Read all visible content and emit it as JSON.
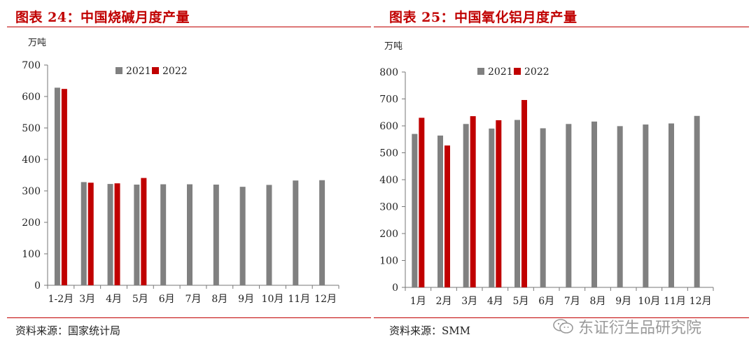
{
  "colors": {
    "y2021": "#808080",
    "y2022": "#c00000",
    "title": "#c00000"
  },
  "watermark": {
    "text": "东证衍生品研究院",
    "icon": "wechat-icon"
  },
  "left": {
    "title": "图表 24：中国烧碱月度产量",
    "source": "资料来源：国家统计局",
    "chart_data": {
      "type": "bar",
      "ylabel": "万吨",
      "ylim": [
        0,
        700
      ],
      "yticks": [
        0,
        100,
        200,
        300,
        400,
        500,
        600,
        700
      ],
      "grid": false,
      "legend": "top-center",
      "categories": [
        "1-2月",
        "3月",
        "4月",
        "5月",
        "6月",
        "7月",
        "8月",
        "9月",
        "10月",
        "11月",
        "12月"
      ],
      "series": [
        {
          "name": "2021",
          "values": [
            628,
            328,
            322,
            320,
            321,
            321,
            320,
            313,
            319,
            333,
            334
          ]
        },
        {
          "name": "2022",
          "values": [
            624,
            326,
            324,
            341,
            null,
            null,
            null,
            null,
            null,
            null,
            null
          ]
        }
      ]
    }
  },
  "right": {
    "title": "图表 25：中国氧化铝月度产量",
    "source": "资料来源：SMM",
    "chart_data": {
      "type": "bar",
      "ylabel": "万吨",
      "ylim": [
        0,
        800
      ],
      "yticks": [
        0,
        100,
        200,
        300,
        400,
        500,
        600,
        700,
        800
      ],
      "grid": false,
      "legend": "top-center",
      "categories": [
        "1月",
        "2月",
        "3月",
        "4月",
        "5月",
        "6月",
        "7月",
        "8月",
        "9月",
        "10月",
        "11月",
        "12月"
      ],
      "series": [
        {
          "name": "2021",
          "values": [
            570,
            564,
            607,
            590,
            622,
            591,
            607,
            616,
            599,
            605,
            609,
            637
          ]
        },
        {
          "name": "2022",
          "values": [
            630,
            527,
            636,
            621,
            696,
            null,
            null,
            null,
            null,
            null,
            null,
            null
          ]
        }
      ]
    }
  }
}
